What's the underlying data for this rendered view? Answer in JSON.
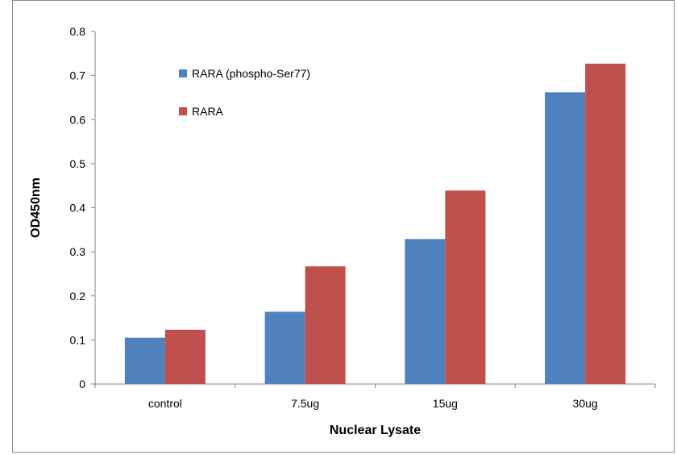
{
  "chart_data": {
    "type": "bar",
    "categories": [
      "control",
      "7.5ug",
      "15ug",
      "30ug"
    ],
    "series": [
      {
        "name": "RARA (phospho-Ser77)",
        "color": "#4f81bd",
        "values": [
          0.105,
          0.164,
          0.329,
          0.662
        ]
      },
      {
        "name": "RARA",
        "color": "#c0504d",
        "values": [
          0.123,
          0.267,
          0.439,
          0.727
        ]
      }
    ],
    "title": "",
    "xlabel": "Nuclear Lysate",
    "ylabel": "OD450nm",
    "ylim": [
      0,
      0.8
    ],
    "yticks": [
      "0",
      "0.1",
      "0.2",
      "0.3",
      "0.4",
      "0.5",
      "0.6",
      "0.7",
      "0.8"
    ],
    "grid": false,
    "legend_position": "top-left"
  }
}
